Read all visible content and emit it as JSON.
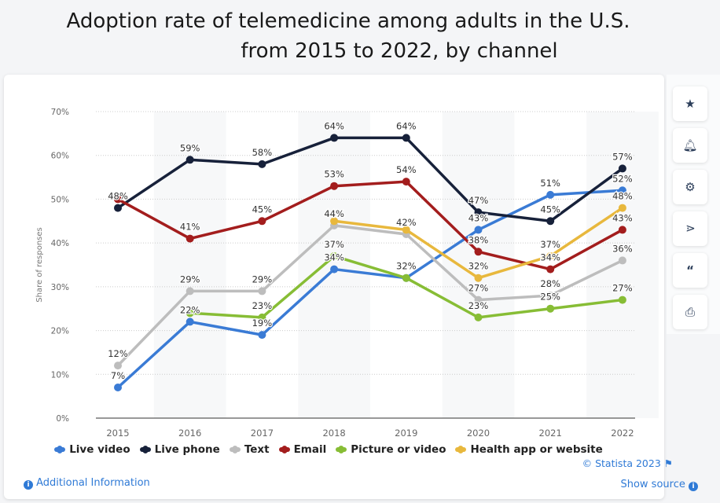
{
  "title_line1": "Adoption rate of telemedicine among adults in the U.S.",
  "title_line2": "from 2015 to 2022, by channel",
  "sidebar": [
    "star-icon",
    "bell-icon",
    "gear-icon",
    "share-icon",
    "quote-icon",
    "print-icon"
  ],
  "footer": {
    "copyright": "© Statista 2023",
    "additional_info": "Additional Information",
    "show_source": "Show source"
  },
  "chart_data": {
    "type": "line",
    "title": "Adoption rate of telemedicine among adults in the U.S. from 2015 to 2022, by channel",
    "ylabel": "Share of responses",
    "xlabel": "",
    "ylim": [
      0,
      70
    ],
    "yticks": [
      "0%",
      "10%",
      "20%",
      "30%",
      "40%",
      "50%",
      "60%",
      "70%"
    ],
    "categories": [
      "2015",
      "2016",
      "2017",
      "2018",
      "2019",
      "2020",
      "2021",
      "2022"
    ],
    "grid": true,
    "legend": "bottom",
    "series": [
      {
        "name": "Live video",
        "color": "#3a7bd5",
        "values": [
          7,
          22,
          19,
          34,
          32,
          43,
          51,
          52
        ]
      },
      {
        "name": "Live phone",
        "color": "#17213a",
        "values": [
          48,
          59,
          58,
          64,
          64,
          47,
          45,
          57
        ]
      },
      {
        "name": "Text",
        "color": "#bdbdbd",
        "values": [
          12,
          29,
          29,
          44,
          42,
          27,
          28,
          36
        ]
      },
      {
        "name": "Email",
        "color": "#a31d1d",
        "values": [
          50,
          41,
          45,
          53,
          54,
          38,
          34,
          43
        ]
      },
      {
        "name": "Picture or video",
        "color": "#87bd35",
        "values": [
          null,
          24,
          23,
          37,
          32,
          23,
          25,
          27
        ]
      },
      {
        "name": "Health app or website",
        "color": "#e8b83d",
        "values": [
          null,
          null,
          null,
          45,
          43,
          32,
          37,
          48
        ]
      }
    ]
  }
}
